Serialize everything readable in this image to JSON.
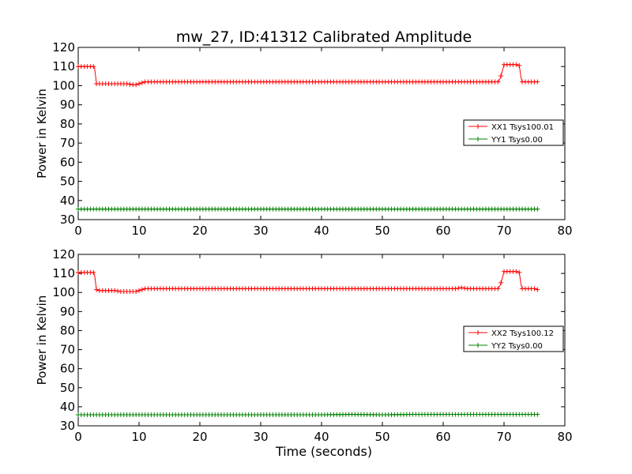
{
  "figure": {
    "title": "mw_27, ID:41312 Calibrated Amplitude",
    "xlabel": "Time (seconds)"
  },
  "colors": {
    "xx": "#ff0000",
    "yy": "#008000"
  },
  "chart_data": [
    {
      "type": "line",
      "title": "mw_27, ID:41312 Calibrated Amplitude",
      "xlabel": "",
      "ylabel": "Power in Kelvin",
      "xlim": [
        0,
        80
      ],
      "ylim": [
        30,
        120
      ],
      "xticks": [
        0,
        10,
        20,
        30,
        40,
        50,
        60,
        70,
        80
      ],
      "yticks": [
        30,
        40,
        50,
        60,
        70,
        80,
        90,
        100,
        110,
        120
      ],
      "legend_position": "right",
      "marker": "+",
      "series": [
        {
          "name": "XX1 Tsys100.01",
          "color": "#ff0000",
          "x": [
            0,
            0.5,
            1,
            1.5,
            2,
            2.5,
            2.7,
            3,
            3.5,
            4,
            5,
            6,
            7,
            8,
            9,
            9.5,
            10,
            10.5,
            11,
            12,
            13,
            14,
            15,
            20,
            25,
            30,
            35,
            40,
            45,
            50,
            55,
            60,
            65,
            69,
            69.4,
            69.8,
            70,
            71,
            72,
            72.5,
            72.8,
            73,
            74,
            75,
            75.5
          ],
          "y": [
            110,
            110,
            110,
            110,
            110,
            110,
            109,
            101,
            101,
            101,
            101,
            101,
            101,
            101,
            100.5,
            100.5,
            101,
            101.5,
            102,
            102,
            102,
            102,
            102,
            102,
            102,
            102,
            102,
            102,
            102,
            102,
            102,
            102,
            102,
            102,
            104,
            108.5,
            111,
            111,
            111,
            110.5,
            104,
            102,
            102,
            102,
            102
          ]
        },
        {
          "name": "YY1 Tsys0.00",
          "color": "#008000",
          "x": [
            0,
            10,
            20,
            30,
            40,
            50,
            60,
            70,
            75.5
          ],
          "y": [
            35.5,
            35.5,
            35.5,
            35.5,
            35.5,
            35.5,
            35.5,
            35.5,
            35.5
          ]
        }
      ]
    },
    {
      "type": "line",
      "title": "",
      "xlabel": "Time (seconds)",
      "ylabel": "Power in Kelvin",
      "xlim": [
        0,
        80
      ],
      "ylim": [
        30,
        120
      ],
      "xticks": [
        0,
        10,
        20,
        30,
        40,
        50,
        60,
        70,
        80
      ],
      "yticks": [
        30,
        40,
        50,
        60,
        70,
        80,
        90,
        100,
        110,
        120
      ],
      "legend_position": "right",
      "marker": "+",
      "series": [
        {
          "name": "XX2 Tsys100.12",
          "color": "#ff0000",
          "x": [
            0,
            0.5,
            1,
            1.5,
            2,
            2.5,
            2.7,
            3,
            3.5,
            4,
            5,
            6,
            7,
            8,
            9,
            9.5,
            10,
            10.5,
            11,
            12,
            13,
            14,
            15,
            20,
            25,
            30,
            35,
            40,
            45,
            50,
            55,
            60,
            62,
            63,
            64,
            65,
            69,
            69.4,
            69.8,
            70,
            71,
            72,
            72.5,
            72.8,
            73,
            74,
            75,
            75.5
          ],
          "y": [
            110.5,
            110.5,
            110.5,
            110.5,
            110.5,
            110.5,
            109,
            101.5,
            101,
            101,
            101,
            101,
            100.5,
            100.5,
            100.5,
            100.5,
            101,
            101.5,
            102,
            102,
            102,
            102,
            102,
            102,
            102,
            102,
            102,
            102,
            102,
            102,
            102,
            102,
            102,
            102.5,
            102,
            102,
            102,
            104,
            108.5,
            111,
            111,
            111,
            110.5,
            104,
            102,
            102,
            102,
            101.5
          ]
        },
        {
          "name": "YY2 Tsys0.00",
          "color": "#008000",
          "x": [
            0,
            5,
            10,
            15,
            20,
            25,
            30,
            35,
            40,
            45,
            50,
            55,
            60,
            65,
            70,
            75.5
          ],
          "y": [
            35.8,
            35.8,
            35.8,
            35.8,
            35.8,
            35.8,
            35.8,
            35.8,
            35.8,
            36,
            35.8,
            36,
            36,
            36,
            36,
            36
          ]
        }
      ]
    }
  ]
}
